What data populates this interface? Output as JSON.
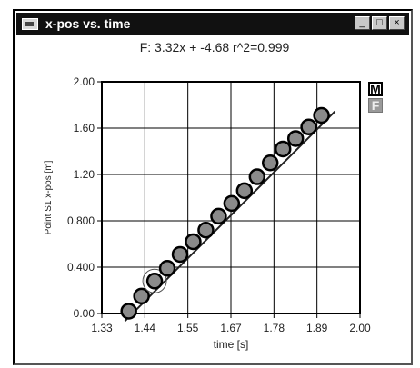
{
  "window": {
    "title": "x-pos vs. time",
    "minimize_glyph": "_",
    "maximize_glyph": "□",
    "close_glyph": "×"
  },
  "side_buttons": {
    "m_label": "M",
    "f_label": "F"
  },
  "chart_data": {
    "type": "scatter",
    "title": "F: 3.32x + -4.68  r^2=0.999",
    "xlabel": "time [s]",
    "ylabel": "Point S1 x-pos [m]",
    "xlim": [
      1.33,
      2.0
    ],
    "ylim": [
      0.0,
      2.0
    ],
    "x_ticks": [
      "1.33",
      "1.44",
      "1.55",
      "1.67",
      "1.78",
      "1.89",
      "2.00"
    ],
    "y_ticks": [
      "0.00",
      "0.400",
      "0.800",
      "1.20",
      "1.60",
      "2.00"
    ],
    "grid": true,
    "fit_line": {
      "slope": 3.32,
      "intercept": -4.68,
      "x_range": [
        1.39,
        1.935
      ]
    },
    "highlighted_point_index": 2,
    "series": [
      {
        "x": [
          1.4,
          1.433,
          1.467,
          1.5,
          1.533,
          1.567,
          1.6,
          1.633,
          1.667,
          1.7,
          1.733,
          1.767,
          1.8,
          1.833,
          1.867,
          1.9
        ],
        "y": [
          0.02,
          0.15,
          0.28,
          0.39,
          0.51,
          0.62,
          0.72,
          0.84,
          0.95,
          1.06,
          1.18,
          1.3,
          1.42,
          1.51,
          1.61,
          1.71
        ]
      }
    ]
  }
}
